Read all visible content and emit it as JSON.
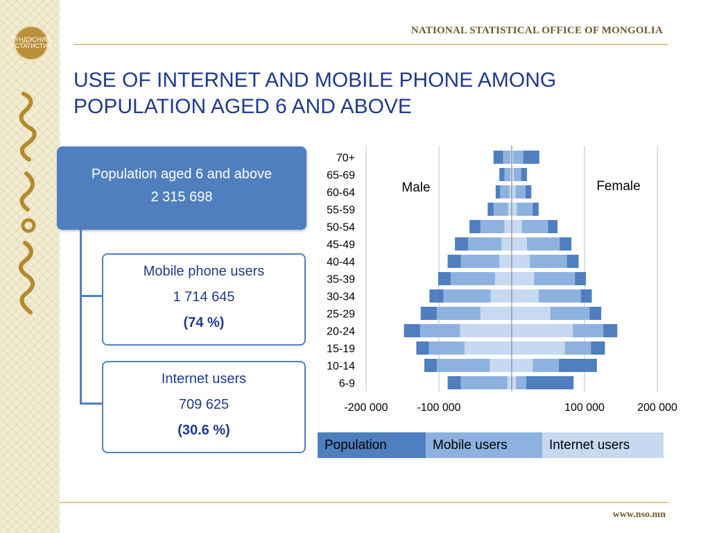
{
  "header": {
    "organization": "NATIONAL STATISTICAL OFFICE OF MONGOLIA"
  },
  "title": "USE OF INTERNET AND MOBILE PHONE AMONG\nPOPULATION AGED 6 AND ABOVE",
  "emblem": {
    "text": "ҮНДЭСНИЙ СТАТИСТИК"
  },
  "footer": {
    "url": "www.nso.mn"
  },
  "summary": {
    "population": {
      "label": "Population aged 6 and above",
      "value": "2 315 698"
    },
    "mobile": {
      "label": "Mobile phone users",
      "value": "1 714 645",
      "percent": "(74 %)"
    },
    "internet": {
      "label": "Internet users",
      "value": "709 625",
      "percent": "(30.6 %)"
    }
  },
  "colors": {
    "population": "#4f7fbe",
    "mobile": "#8eb2e0",
    "internet": "#c6d9f0",
    "accent": "#1f3a8a"
  },
  "chart_data": {
    "type": "bar",
    "orientation": "horizontal-population-pyramid",
    "categories": [
      "70+",
      "65-69",
      "60-64",
      "55-59",
      "50-54",
      "45-49",
      "40-44",
      "35-39",
      "30-34",
      "25-29",
      "20-24",
      "15-19",
      "10-14",
      "6-9"
    ],
    "x_ticks": [
      -200000,
      -100000,
      100000,
      200000
    ],
    "x_tick_labels": [
      "-200 000",
      "-100 000",
      "100 000",
      "200 000"
    ],
    "xlim": [
      -200000,
      200000
    ],
    "annotations": {
      "left": "Male",
      "right": "Female"
    },
    "legend": [
      "Population",
      "Mobile users",
      "Internet users"
    ],
    "legend_position": "bottom",
    "male": {
      "population": [
        25000,
        17000,
        22000,
        33000,
        58000,
        78000,
        88000,
        101000,
        113000,
        125000,
        148000,
        131000,
        120000,
        88000
      ],
      "mobile": [
        12000,
        10000,
        16000,
        25000,
        43000,
        60000,
        70000,
        84000,
        94000,
        103000,
        126000,
        114000,
        103000,
        70000
      ],
      "internet": [
        2000,
        2000,
        3000,
        5000,
        10000,
        14000,
        17000,
        23000,
        29000,
        43000,
        71000,
        65000,
        30000,
        6000
      ]
    },
    "female": {
      "population": [
        38000,
        21000,
        27000,
        37000,
        63000,
        82000,
        92000,
        102000,
        110000,
        123000,
        145000,
        128000,
        117000,
        85000
      ],
      "mobile": [
        16000,
        13000,
        19000,
        29000,
        50000,
        66000,
        76000,
        87000,
        95000,
        107000,
        126000,
        109000,
        65000,
        20000
      ],
      "internet": [
        2000,
        3000,
        5000,
        7000,
        14000,
        21000,
        25000,
        31000,
        37000,
        53000,
        84000,
        73000,
        29000,
        6000
      ]
    }
  }
}
